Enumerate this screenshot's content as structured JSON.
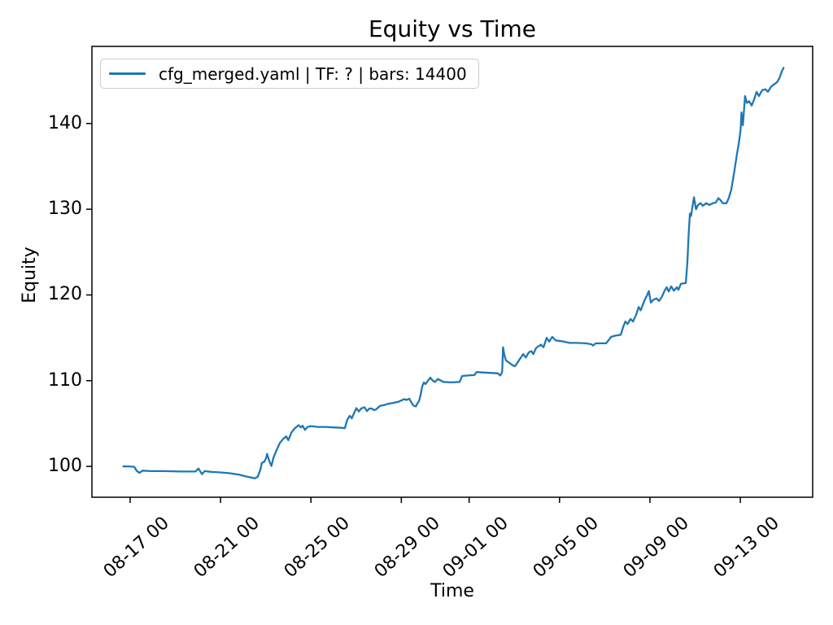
{
  "figure": {
    "title": "Equity vs Time",
    "xlabel": "Time",
    "ylabel": "Equity"
  },
  "legend": {
    "position": "upper left",
    "entries": [
      {
        "label": "cfg_merged.yaml | TF: ? | bars: 14400",
        "color": "#1f77b4"
      }
    ]
  },
  "style": {
    "line_color": "#1f77b4",
    "spine_color": "#000000",
    "legend_border_color": "#cccccc",
    "background_color": "#ffffff"
  },
  "chart_data": {
    "type": "line",
    "title": "Equity vs Time",
    "xlabel": "Time",
    "ylabel": "Equity",
    "grid": false,
    "legend_position": "upper left",
    "x_unit": "days relative to first x tick (08-17 00)",
    "xlim_days": [
      -1.69,
      30.2
    ],
    "ylim": [
      96.4,
      149.0
    ],
    "x_ticks": [
      {
        "d": 0,
        "label": "08-17 00"
      },
      {
        "d": 4,
        "label": "08-21 00"
      },
      {
        "d": 8,
        "label": "08-25 00"
      },
      {
        "d": 12,
        "label": "08-29 00"
      },
      {
        "d": 15,
        "label": "09-01 00"
      },
      {
        "d": 19,
        "label": "09-05 00"
      },
      {
        "d": 23,
        "label": "09-09 00"
      },
      {
        "d": 27,
        "label": "09-13 00"
      }
    ],
    "y_ticks": [
      100,
      110,
      120,
      130,
      140
    ],
    "series": [
      {
        "name": "cfg_merged.yaml | TF: ? | bars: 14400",
        "color": "#1f77b4",
        "points": [
          [
            -0.3,
            100.0
          ],
          [
            -0.05,
            100.0
          ],
          [
            0.18,
            99.95
          ],
          [
            0.3,
            99.45
          ],
          [
            0.42,
            99.25
          ],
          [
            0.55,
            99.5
          ],
          [
            0.9,
            99.45
          ],
          [
            1.5,
            99.45
          ],
          [
            2.2,
            99.4
          ],
          [
            2.9,
            99.4
          ],
          [
            3.02,
            99.75
          ],
          [
            3.18,
            99.1
          ],
          [
            3.3,
            99.45
          ],
          [
            3.6,
            99.35
          ],
          [
            4.0,
            99.3
          ],
          [
            4.4,
            99.2
          ],
          [
            4.8,
            99.05
          ],
          [
            5.1,
            98.85
          ],
          [
            5.35,
            98.7
          ],
          [
            5.52,
            98.6
          ],
          [
            5.65,
            98.8
          ],
          [
            5.76,
            99.6
          ],
          [
            5.83,
            100.4
          ],
          [
            5.94,
            100.55
          ],
          [
            6.02,
            101.0
          ],
          [
            6.06,
            101.45
          ],
          [
            6.16,
            100.6
          ],
          [
            6.25,
            100.05
          ],
          [
            6.34,
            101.0
          ],
          [
            6.48,
            101.9
          ],
          [
            6.62,
            102.7
          ],
          [
            6.77,
            103.2
          ],
          [
            6.91,
            103.5
          ],
          [
            7.0,
            103.05
          ],
          [
            7.13,
            103.9
          ],
          [
            7.27,
            104.4
          ],
          [
            7.45,
            104.8
          ],
          [
            7.56,
            104.55
          ],
          [
            7.63,
            104.75
          ],
          [
            7.74,
            104.25
          ],
          [
            7.85,
            104.6
          ],
          [
            8.0,
            104.7
          ],
          [
            8.3,
            104.6
          ],
          [
            8.65,
            104.6
          ],
          [
            9.0,
            104.55
          ],
          [
            9.35,
            104.5
          ],
          [
            9.5,
            104.45
          ],
          [
            9.61,
            105.45
          ],
          [
            9.72,
            105.9
          ],
          [
            9.81,
            105.6
          ],
          [
            9.94,
            106.4
          ],
          [
            10.01,
            106.8
          ],
          [
            10.12,
            106.4
          ],
          [
            10.22,
            106.75
          ],
          [
            10.37,
            106.9
          ],
          [
            10.48,
            106.45
          ],
          [
            10.58,
            106.75
          ],
          [
            10.69,
            106.75
          ],
          [
            10.8,
            106.55
          ],
          [
            10.91,
            106.7
          ],
          [
            11.05,
            107.05
          ],
          [
            11.23,
            107.15
          ],
          [
            11.41,
            107.3
          ],
          [
            11.63,
            107.4
          ],
          [
            11.88,
            107.55
          ],
          [
            12.13,
            107.85
          ],
          [
            12.24,
            107.75
          ],
          [
            12.35,
            107.9
          ],
          [
            12.46,
            107.4
          ],
          [
            12.53,
            107.1
          ],
          [
            12.64,
            107.0
          ],
          [
            12.71,
            107.35
          ],
          [
            12.78,
            107.6
          ],
          [
            12.85,
            108.3
          ],
          [
            12.92,
            109.3
          ],
          [
            13.0,
            109.8
          ],
          [
            13.07,
            109.6
          ],
          [
            13.18,
            110.0
          ],
          [
            13.28,
            110.35
          ],
          [
            13.39,
            110.0
          ],
          [
            13.5,
            109.85
          ],
          [
            13.61,
            110.2
          ],
          [
            13.72,
            110.05
          ],
          [
            13.86,
            109.85
          ],
          [
            14.2,
            109.8
          ],
          [
            14.58,
            109.85
          ],
          [
            14.69,
            110.55
          ],
          [
            14.94,
            110.6
          ],
          [
            15.23,
            110.65
          ],
          [
            15.33,
            111.0
          ],
          [
            15.66,
            110.95
          ],
          [
            16.02,
            110.9
          ],
          [
            16.27,
            110.85
          ],
          [
            16.38,
            110.6
          ],
          [
            16.46,
            111.0
          ],
          [
            16.5,
            113.9
          ],
          [
            16.56,
            113.0
          ],
          [
            16.63,
            112.35
          ],
          [
            16.77,
            112.1
          ],
          [
            16.92,
            111.8
          ],
          [
            17.03,
            111.7
          ],
          [
            17.14,
            112.1
          ],
          [
            17.24,
            112.5
          ],
          [
            17.39,
            113.1
          ],
          [
            17.51,
            112.7
          ],
          [
            17.64,
            113.3
          ],
          [
            17.75,
            113.45
          ],
          [
            17.84,
            113.1
          ],
          [
            17.96,
            113.8
          ],
          [
            18.07,
            114.0
          ],
          [
            18.18,
            114.2
          ],
          [
            18.29,
            113.9
          ],
          [
            18.43,
            115.0
          ],
          [
            18.54,
            114.55
          ],
          [
            18.68,
            115.1
          ],
          [
            18.83,
            114.7
          ],
          [
            19.1,
            114.6
          ],
          [
            19.45,
            114.4
          ],
          [
            19.8,
            114.4
          ],
          [
            20.16,
            114.35
          ],
          [
            20.41,
            114.25
          ],
          [
            20.48,
            114.1
          ],
          [
            20.6,
            114.35
          ],
          [
            21.06,
            114.35
          ],
          [
            21.28,
            115.1
          ],
          [
            21.46,
            115.25
          ],
          [
            21.71,
            115.35
          ],
          [
            21.82,
            116.3
          ],
          [
            21.91,
            116.9
          ],
          [
            22.01,
            116.6
          ],
          [
            22.14,
            117.2
          ],
          [
            22.25,
            116.9
          ],
          [
            22.39,
            117.7
          ],
          [
            22.5,
            118.6
          ],
          [
            22.59,
            118.2
          ],
          [
            22.75,
            119.3
          ],
          [
            22.86,
            119.9
          ],
          [
            22.95,
            120.45
          ],
          [
            23.04,
            119.1
          ],
          [
            23.16,
            119.45
          ],
          [
            23.29,
            119.6
          ],
          [
            23.4,
            119.3
          ],
          [
            23.52,
            119.75
          ],
          [
            23.65,
            120.5
          ],
          [
            23.74,
            120.9
          ],
          [
            23.83,
            120.4
          ],
          [
            23.94,
            121.0
          ],
          [
            24.06,
            120.5
          ],
          [
            24.19,
            120.9
          ],
          [
            24.26,
            120.6
          ],
          [
            24.37,
            121.3
          ],
          [
            24.59,
            121.4
          ],
          [
            24.66,
            124.0
          ],
          [
            24.71,
            127.0
          ],
          [
            24.77,
            129.5
          ],
          [
            24.82,
            129.2
          ],
          [
            24.88,
            130.3
          ],
          [
            24.95,
            131.4
          ],
          [
            25.04,
            130.0
          ],
          [
            25.13,
            130.5
          ],
          [
            25.24,
            130.7
          ],
          [
            25.34,
            130.4
          ],
          [
            25.49,
            130.7
          ],
          [
            25.63,
            130.5
          ],
          [
            25.78,
            130.7
          ],
          [
            25.92,
            130.8
          ],
          [
            26.03,
            131.3
          ],
          [
            26.14,
            131.0
          ],
          [
            26.22,
            130.7
          ],
          [
            26.39,
            130.7
          ],
          [
            26.49,
            131.3
          ],
          [
            26.6,
            132.3
          ],
          [
            26.71,
            134.0
          ],
          [
            26.85,
            136.4
          ],
          [
            26.94,
            137.8
          ],
          [
            27.01,
            139.3
          ],
          [
            27.05,
            141.3
          ],
          [
            27.11,
            139.8
          ],
          [
            27.21,
            143.2
          ],
          [
            27.29,
            142.4
          ],
          [
            27.39,
            142.6
          ],
          [
            27.5,
            142.1
          ],
          [
            27.61,
            142.8
          ],
          [
            27.72,
            143.7
          ],
          [
            27.82,
            143.2
          ],
          [
            27.97,
            143.9
          ],
          [
            28.11,
            144.0
          ],
          [
            28.22,
            143.7
          ],
          [
            28.36,
            144.3
          ],
          [
            28.51,
            144.6
          ],
          [
            28.62,
            144.8
          ],
          [
            28.73,
            145.3
          ],
          [
            28.82,
            146.0
          ],
          [
            28.91,
            146.5
          ]
        ]
      }
    ]
  }
}
